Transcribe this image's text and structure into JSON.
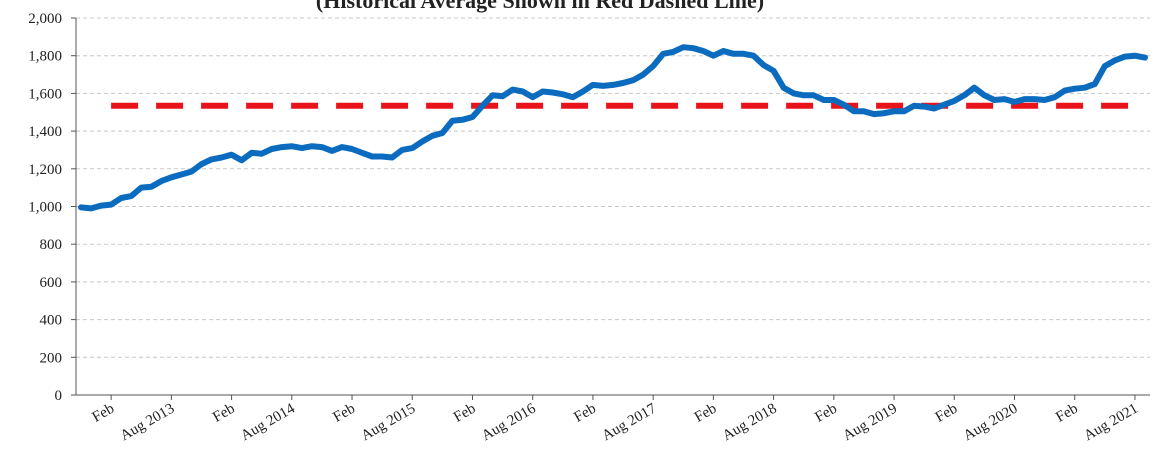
{
  "chart_data": {
    "type": "line",
    "subtitle": "(Historical Average Shown in Red Dashed Line)",
    "categories": [
      null,
      null,
      null,
      "Feb",
      null,
      null,
      null,
      null,
      null,
      "Aug 2013",
      null,
      null,
      null,
      null,
      null,
      "Feb",
      null,
      null,
      null,
      null,
      null,
      "Aug 2014",
      null,
      null,
      null,
      null,
      null,
      "Feb",
      null,
      null,
      null,
      null,
      null,
      "Aug 2015",
      null,
      null,
      null,
      null,
      null,
      "Feb",
      null,
      null,
      null,
      null,
      null,
      "Aug 2016",
      null,
      null,
      null,
      null,
      null,
      "Feb",
      null,
      null,
      null,
      null,
      null,
      "Aug 2017",
      null,
      null,
      null,
      null,
      null,
      "Feb",
      null,
      null,
      null,
      null,
      null,
      "Aug 2018",
      null,
      null,
      null,
      null,
      null,
      "Feb",
      null,
      null,
      null,
      null,
      null,
      "Aug 2019",
      null,
      null,
      null,
      null,
      null,
      "Feb",
      null,
      null,
      null,
      null,
      null,
      "Aug 2020",
      null,
      null,
      null,
      null,
      null,
      "Feb",
      null,
      null,
      null,
      null,
      null,
      "Aug 2021",
      null
    ],
    "series": [
      {
        "color": "#0b6cbf",
        "style": "solid",
        "values": [
          995,
          990,
          1005,
          1010,
          1045,
          1055,
          1100,
          1105,
          1135,
          1155,
          1170,
          1185,
          1225,
          1250,
          1260,
          1275,
          1245,
          1285,
          1280,
          1305,
          1315,
          1320,
          1310,
          1320,
          1315,
          1295,
          1315,
          1305,
          1285,
          1265,
          1265,
          1260,
          1300,
          1310,
          1345,
          1375,
          1390,
          1455,
          1460,
          1475,
          1535,
          1590,
          1585,
          1620,
          1610,
          1580,
          1610,
          1605,
          1595,
          1580,
          1610,
          1645,
          1640,
          1645,
          1655,
          1670,
          1700,
          1745,
          1810,
          1820,
          1845,
          1840,
          1825,
          1800,
          1825,
          1810,
          1810,
          1800,
          1750,
          1720,
          1630,
          1600,
          1590,
          1590,
          1565,
          1565,
          1540,
          1505,
          1505,
          1490,
          1495,
          1505,
          1505,
          1535,
          1530,
          1520,
          1540,
          1560,
          1590,
          1630,
          1590,
          1565,
          1570,
          1555,
          1570,
          1570,
          1565,
          1580,
          1615,
          1625,
          1630,
          1650,
          1745,
          1775,
          1795,
          1800,
          1790
        ]
      },
      {
        "color": "#e8131b",
        "style": "dashed",
        "values": [
          null,
          null,
          null,
          1535,
          1535,
          1535,
          1535,
          1535,
          1535,
          1535,
          1535,
          1535,
          1535,
          1535,
          1535,
          1535,
          1535,
          1535,
          1535,
          1535,
          1535,
          1535,
          1535,
          1535,
          1535,
          1535,
          1535,
          1535,
          1535,
          1535,
          1535,
          1535,
          1535,
          1535,
          1535,
          1535,
          1535,
          1535,
          1535,
          1535,
          1535,
          1535,
          1535,
          1535,
          1535,
          1535,
          1535,
          1535,
          1535,
          1535,
          1535,
          1535,
          1535,
          1535,
          1535,
          1535,
          1535,
          1535,
          1535,
          1535,
          1535,
          1535,
          1535,
          1535,
          1535,
          1535,
          1535,
          1535,
          1535,
          1535,
          1535,
          1535,
          1535,
          1535,
          1535,
          1535,
          1535,
          1535,
          1535,
          1535,
          1535,
          1535,
          1535,
          1535,
          1535,
          1535,
          1535,
          1535,
          1535,
          1535,
          1535,
          1535,
          1535,
          1535,
          1535,
          1535,
          1535,
          1535,
          1535,
          1535,
          1535,
          1535,
          1535,
          1535,
          1535,
          1535,
          1535
        ]
      }
    ],
    "ylim": [
      0,
      2000
    ],
    "yticks": [
      0,
      200,
      400,
      600,
      800,
      {
        "value": 1000,
        "label": "1,000"
      },
      {
        "value": 1200,
        "label": "1,200"
      },
      {
        "value": 1400,
        "label": "1,400"
      },
      {
        "value": 1600,
        "label": "1,600"
      },
      {
        "value": 1800,
        "label": "1,800"
      },
      {
        "value": 2000,
        "label": "2,000"
      }
    ],
    "grid": true
  }
}
